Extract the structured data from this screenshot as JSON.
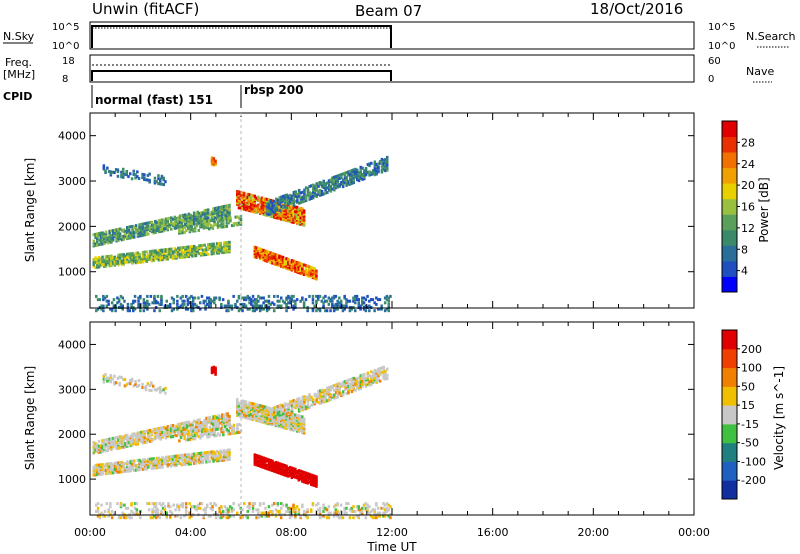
{
  "header": {
    "site": "Unwin (fitACF)",
    "beam": "Beam 07",
    "date": "18/Oct/2016"
  },
  "nsky_panel": {
    "left_label": "N.Sky",
    "right_label": "N.Search",
    "left_ticks": [
      "10^5",
      "10^0"
    ],
    "right_ticks": [
      "10^5",
      "10^0"
    ]
  },
  "freq_panel": {
    "left_label_1": "Freq.",
    "left_label_2": "[MHz]",
    "right_label": "Nave",
    "left_ticks": [
      "18",
      "8"
    ],
    "right_ticks": [
      "60",
      "0"
    ]
  },
  "cpid": {
    "label": "CPID",
    "modes": [
      {
        "name": "normal (fast) 151",
        "start_hour": 0
      },
      {
        "name": "rbsp 200",
        "start_hour": 6
      }
    ]
  },
  "chart_data": [
    {
      "type": "heatmap",
      "name": "power",
      "ylabel": "Slant Range [km]",
      "xlabel": "Time UT",
      "xlim": [
        0,
        24
      ],
      "ylim": [
        200,
        4500
      ],
      "x_tick_labels": [
        "00:00",
        "04:00",
        "08:00",
        "12:00",
        "16:00",
        "20:00",
        "00:00"
      ],
      "y_ticks": [
        1000,
        2000,
        3000,
        4000
      ],
      "colorbar": {
        "label": "Power [dB]",
        "ticks": [
          "28",
          "24",
          "20",
          "16",
          "12",
          "8",
          "4"
        ],
        "colors": [
          "#0000ff",
          "#2050c0",
          "#2a6e9a",
          "#3a8a6a",
          "#5aa05a",
          "#9ac040",
          "#e8d000",
          "#f0a000",
          "#f07000",
          "#e83000",
          "#e00000"
        ]
      }
    },
    {
      "type": "heatmap",
      "name": "velocity",
      "ylabel": "Slant Range [km]",
      "xlabel": "Time UT",
      "xlim": [
        0,
        24
      ],
      "ylim": [
        200,
        4500
      ],
      "x_tick_labels": [
        "00:00",
        "04:00",
        "08:00",
        "12:00",
        "16:00",
        "20:00",
        "00:00"
      ],
      "y_ticks": [
        1000,
        2000,
        3000,
        4000
      ],
      "colorbar": {
        "label": "Velocity [m s^-1]",
        "ticks": [
          "200",
          "100",
          "50",
          "15",
          "-15",
          "-50",
          "-100",
          "-200"
        ],
        "colors": [
          "#1030a0",
          "#2060c0",
          "#208080",
          "#40c040",
          "#c8c8c8",
          "#f0c000",
          "#f08000",
          "#f04000",
          "#e00000"
        ]
      }
    }
  ]
}
